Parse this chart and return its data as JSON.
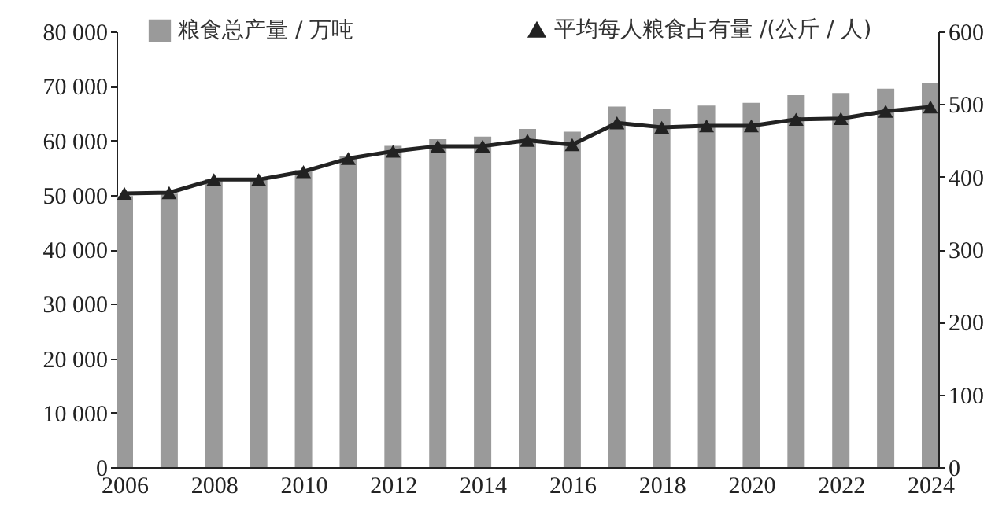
{
  "chart_data": {
    "type": "bar",
    "x": [
      2006,
      2007,
      2008,
      2009,
      2010,
      2011,
      2012,
      2013,
      2014,
      2015,
      2016,
      2017,
      2018,
      2019,
      2020,
      2021,
      2022,
      2023,
      2024
    ],
    "series": [
      {
        "name": "粮食总产量 / 万吨",
        "color": "#9a9a9a",
        "values": [
          49800,
          50200,
          52900,
          53100,
          54600,
          57100,
          59000,
          60200,
          60700,
          62100,
          61600,
          66200,
          65800,
          66400,
          66900,
          68300,
          68700,
          69500,
          70600
        ]
      },
      {
        "name": "平均每人粮食占有量 /(公斤 / 人)",
        "type": "line",
        "axis": "y2",
        "color": "#222222",
        "values": [
          377,
          378,
          396,
          396,
          407,
          425,
          435,
          442,
          442,
          450,
          444,
          474,
          468,
          470,
          470,
          479,
          480,
          490,
          496
        ]
      }
    ],
    "xlim": [
      2006,
      2024
    ],
    "xticks": [
      2006,
      2008,
      2010,
      2012,
      2014,
      2016,
      2018,
      2020,
      2022,
      2024
    ],
    "ylim": [
      0,
      80000
    ],
    "yticks": [
      0,
      {
        "value": 10000,
        "label": "10 000"
      },
      {
        "value": 20000,
        "label": "20 000"
      },
      {
        "value": 30000,
        "label": "30 000"
      },
      {
        "value": 40000,
        "label": "40 000"
      },
      {
        "value": 50000,
        "label": "50 000"
      },
      {
        "value": 60000,
        "label": "60 000"
      },
      {
        "value": 70000,
        "label": "70 000"
      },
      {
        "value": 80000,
        "label": "80 000"
      }
    ],
    "y2lim": [
      0,
      600
    ],
    "y2ticks": [
      0,
      100,
      200,
      300,
      400,
      500,
      600
    ],
    "marker": "triangle",
    "legend": "top",
    "grid": false
  }
}
